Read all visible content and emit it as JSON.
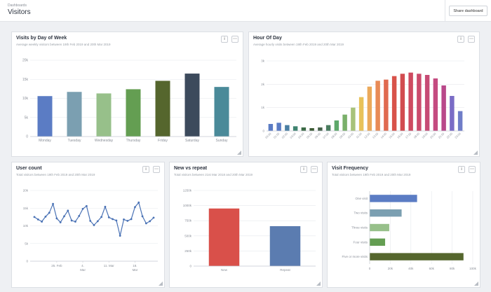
{
  "header": {
    "breadcrumb": "Dashboards",
    "title": "Visitors",
    "share_label": "Share dashboard"
  },
  "icons": {
    "info": "info-icon",
    "more": "more-icon",
    "resize": "resize-handle-icon"
  },
  "panels": {
    "weekday": {
      "title": "Visits by Day of Week",
      "subtitle": "Average weekly visitors between 19th Feb 2019 and 20th Mar 2019"
    },
    "hour": {
      "title": "Hour Of Day",
      "subtitle": "Average hourly visits between 19th Feb 2019 and 20th Mar 2019"
    },
    "users": {
      "title": "User count",
      "subtitle": "Total visitors between 19th Feb 2019 and 20th Mar 2019"
    },
    "newrepeat": {
      "title": "New vs repeat",
      "subtitle": "Total visitors between 21st Mar 2018 and 20th Mar 2019"
    },
    "frequency": {
      "title": "Visit Frequency",
      "subtitle": "Total visitors between 19th Feb 2019 and 20th Mar 2019"
    }
  },
  "chart_data": [
    {
      "id": "weekday",
      "type": "bar",
      "categories": [
        "Monday",
        "Tuesday",
        "Wednesday",
        "Thursday",
        "Friday",
        "Saturday",
        "Sunday"
      ],
      "values": [
        10600,
        11700,
        11300,
        12400,
        14600,
        16500,
        13000
      ],
      "colors": [
        "#5b7cc4",
        "#7b9fb1",
        "#97c08a",
        "#649e52",
        "#55662d",
        "#3c4a5c",
        "#4a8a99"
      ],
      "ylim": [
        0,
        20000
      ],
      "yticks": [
        "0",
        "5k",
        "10k",
        "15k",
        "20k"
      ],
      "grid": true
    },
    {
      "id": "hour",
      "type": "bar",
      "categories": [
        "00:00",
        "01:00",
        "02:00",
        "03:00",
        "04:00",
        "05:00",
        "06:00",
        "07:00",
        "08:00",
        "09:00",
        "10:00",
        "11:00",
        "12:00",
        "13:00",
        "14:00",
        "15:00",
        "16:00",
        "17:00",
        "18:00",
        "19:00",
        "20:00",
        "21:00",
        "22:00",
        "23:00"
      ],
      "values": [
        300,
        350,
        250,
        200,
        150,
        120,
        150,
        250,
        450,
        700,
        1000,
        1450,
        1900,
        2150,
        2200,
        2350,
        2450,
        2500,
        2450,
        2400,
        2250,
        1950,
        1500,
        850
      ],
      "colors": [
        "#5b7cc4",
        "#5b7cc4",
        "#4a7fa3",
        "#3f8470",
        "#3b6a45",
        "#3c5a34",
        "#46614a",
        "#4a7d5f",
        "#5da86a",
        "#7ab06a",
        "#a8c27a",
        "#e8c25a",
        "#eba95a",
        "#e88a55",
        "#e06a4f",
        "#d8524a",
        "#d24c50",
        "#ce4a60",
        "#cb4b6c",
        "#c74b75",
        "#c44b80",
        "#b9488a",
        "#7a6cc6",
        "#6f7dc8"
      ],
      "ylim": [
        0,
        3000
      ],
      "yticks": [
        "0",
        "1k",
        "2k",
        "3k"
      ],
      "grid": true
    },
    {
      "id": "users",
      "type": "line",
      "x_labels": [
        "25. Feb",
        "4. Mar",
        "11. Mar",
        "18. Mar"
      ],
      "values": [
        12500,
        11800,
        11200,
        12600,
        13700,
        16200,
        12100,
        11000,
        12700,
        14300,
        11500,
        11200,
        12800,
        14800,
        15600,
        11400,
        10200,
        11300,
        12500,
        15400,
        12400,
        11900,
        11500,
        7200,
        11800,
        11400,
        11900,
        15300,
        16600,
        12700,
        10700,
        11300,
        12300
      ],
      "ylim": [
        0,
        20000
      ],
      "yticks": [
        "0",
        "5k",
        "10k",
        "15k",
        "20k"
      ],
      "color": "#4a72b5",
      "grid": true
    },
    {
      "id": "newrepeat",
      "type": "bar",
      "categories": [
        "New",
        "Repeat"
      ],
      "values": [
        952000,
        660000
      ],
      "colors": [
        "#d9504a",
        "#5b7cb0"
      ],
      "ylim": [
        0,
        1200000
      ],
      "yticks": [
        "0",
        "250k",
        "500k",
        "750k",
        "1000k",
        "1250k"
      ],
      "grid": true
    },
    {
      "id": "frequency",
      "type": "bar",
      "orientation": "horizontal",
      "categories": [
        "One visit",
        "Two visits",
        "Three visits",
        "Four visits",
        "Five or more visits"
      ],
      "values": [
        46000,
        31000,
        19000,
        15000,
        91000
      ],
      "colors": [
        "#5b7cc4",
        "#7b9fb1",
        "#97c08a",
        "#649e52",
        "#55662d"
      ],
      "xlim": [
        0,
        100000
      ],
      "xticks": [
        "0",
        "20k",
        "40k",
        "60k",
        "80k",
        "100k"
      ],
      "grid": true
    }
  ]
}
